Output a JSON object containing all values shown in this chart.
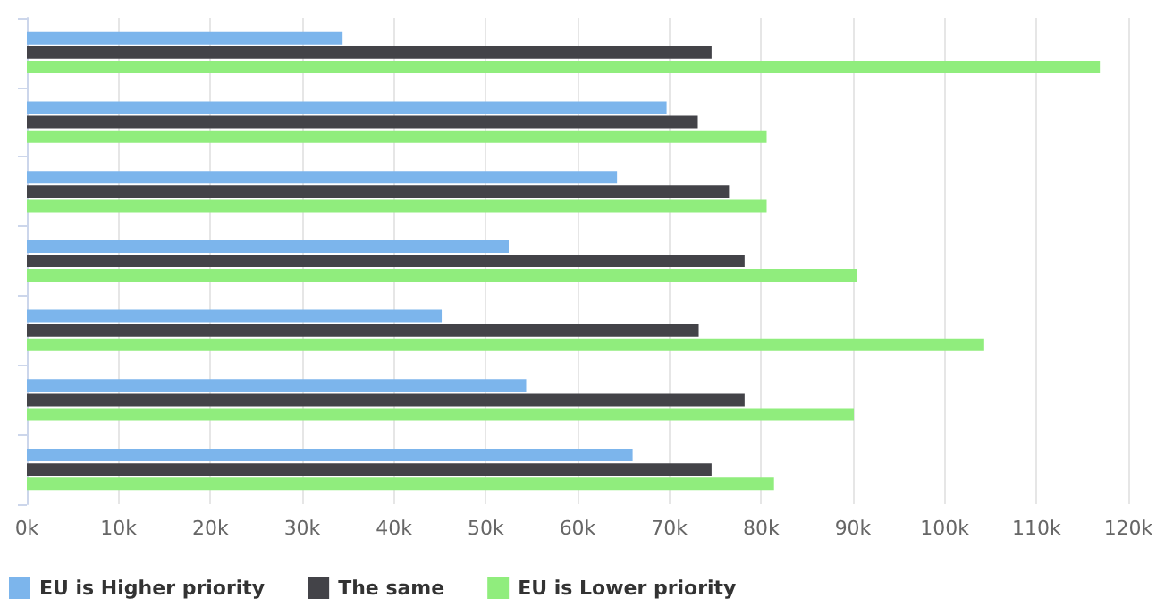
{
  "chart_data": {
    "type": "bar",
    "orientation": "horizontal",
    "categories": [
      null,
      null,
      null,
      null,
      null,
      null,
      null
    ],
    "series": [
      {
        "name": "EU is Higher priority",
        "color": "#7cb5ec",
        "values": [
          34.4,
          69.7,
          64.3,
          52.5,
          45.2,
          54.4,
          66.0
        ]
      },
      {
        "name": "The same",
        "color": "#434348",
        "values": [
          74.6,
          73.1,
          76.5,
          78.2,
          73.2,
          78.2,
          74.6
        ]
      },
      {
        "name": "EU is Lower priority",
        "color": "#90ed7d",
        "values": [
          116.9,
          80.6,
          80.6,
          90.4,
          104.3,
          90.1,
          81.4
        ]
      }
    ],
    "xlim": [
      0,
      120
    ],
    "xticks": [
      {
        "value": 0,
        "label": "0k"
      },
      {
        "value": 10,
        "label": "10k"
      },
      {
        "value": 20,
        "label": "20k"
      },
      {
        "value": 30,
        "label": "30k"
      },
      {
        "value": 40,
        "label": "40k"
      },
      {
        "value": 50,
        "label": "50k"
      },
      {
        "value": 60,
        "label": "60k"
      },
      {
        "value": 70,
        "label": "70k"
      },
      {
        "value": 80,
        "label": "80k"
      },
      {
        "value": 90,
        "label": "90k"
      },
      {
        "value": 100,
        "label": "100k"
      },
      {
        "value": 110,
        "label": "110k"
      },
      {
        "value": 120,
        "label": "120k"
      }
    ],
    "grid": "x",
    "legend": "bottom left"
  }
}
